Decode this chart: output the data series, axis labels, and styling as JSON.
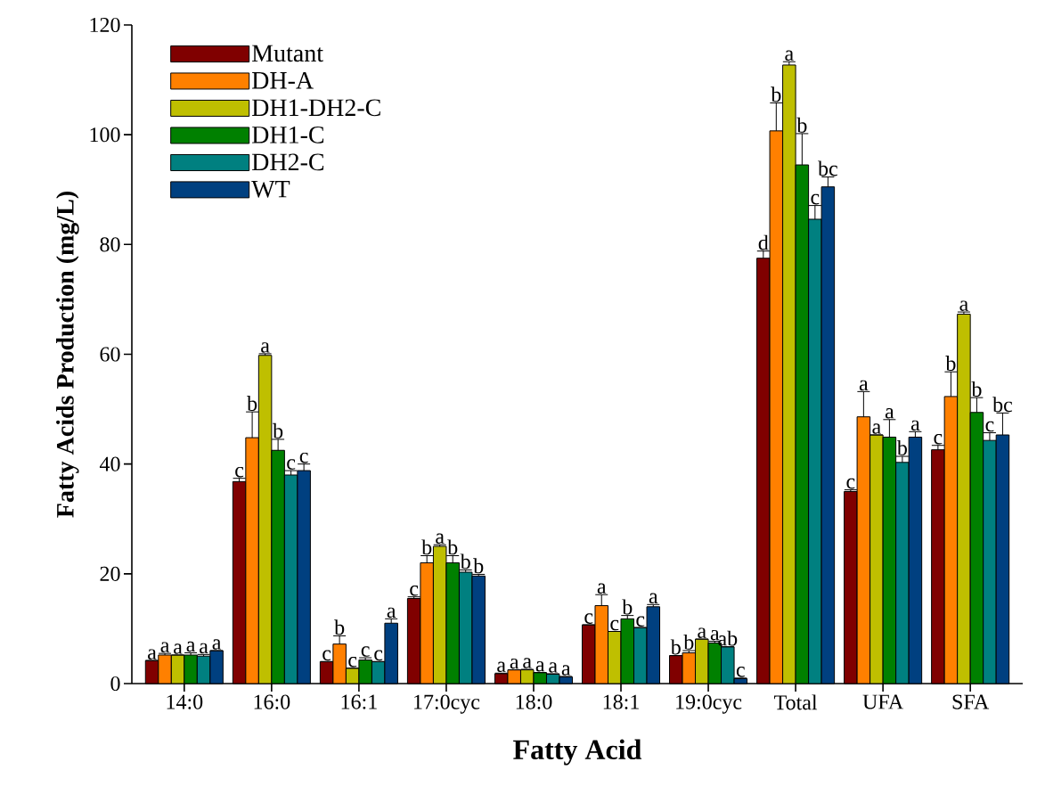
{
  "chart_data": {
    "type": "bar",
    "xlabel": "Fatty Acid",
    "ylabel": "Fatty Acids Production (mg/L)",
    "categories": [
      "14:0",
      "16:0",
      "16:1",
      "17:0cyc",
      "18:0",
      "18:1",
      "19:0cyc",
      "Total",
      "UFA",
      "SFA"
    ],
    "ylim": [
      0,
      120
    ],
    "yticks": [
      0,
      20,
      40,
      60,
      80,
      100,
      120
    ],
    "grid": false,
    "legend": "top left",
    "series": [
      {
        "name": "Mutant",
        "color": "#800000",
        "values": [
          4.2,
          36.8,
          4.0,
          15.5,
          1.8,
          10.7,
          5.1,
          77.5,
          35.0,
          42.6
        ],
        "errors": [
          null,
          0.6,
          null,
          0.3,
          0.1,
          null,
          null,
          1.3,
          0.3,
          0.8
        ],
        "value_labels": [
          "a",
          "c",
          "c",
          "c",
          "a",
          "c",
          "b",
          "d",
          "c",
          "c"
        ]
      },
      {
        "name": "DH-A",
        "color": "#ff8000",
        "values": [
          5.2,
          44.8,
          7.2,
          22.0,
          2.5,
          14.2,
          5.6,
          100.7,
          48.6,
          52.3
        ],
        "errors": [
          0.3,
          4.7,
          1.5,
          1.3,
          null,
          2.0,
          0.4,
          5.1,
          4.6,
          4.5
        ],
        "value_labels": [
          "a",
          "b",
          "b",
          "b",
          "a",
          "a",
          "b",
          "b",
          "a",
          "b"
        ]
      },
      {
        "name": "DH1-DH2-C",
        "color": "#bfbf00",
        "values": [
          5.2,
          59.8,
          2.8,
          25.0,
          2.5,
          9.5,
          8.1,
          112.7,
          45.3,
          67.3
        ],
        "errors": [
          null,
          0.3,
          null,
          0.3,
          0.1,
          null,
          null,
          0.6,
          null,
          0.4
        ],
        "value_labels": [
          "a",
          "a",
          "c",
          "a",
          "a",
          "c",
          "a",
          "a",
          "a",
          "a"
        ]
      },
      {
        "name": "DH1-C",
        "color": "#008000",
        "values": [
          5.2,
          42.5,
          4.3,
          22.0,
          2.0,
          11.8,
          7.4,
          94.5,
          44.9,
          49.4
        ],
        "errors": [
          0.4,
          2.0,
          0.4,
          1.3,
          null,
          0.6,
          0.3,
          5.7,
          3.2,
          2.7
        ],
        "value_labels": [
          "a",
          "b",
          "c",
          "b",
          "a",
          "b",
          "a",
          "b",
          "a",
          "b"
        ]
      },
      {
        "name": "DH2-C",
        "color": "#008080",
        "values": [
          5.0,
          38.0,
          4.0,
          20.3,
          1.7,
          10.2,
          6.7,
          84.6,
          40.3,
          44.3
        ],
        "errors": [
          0.3,
          0.8,
          null,
          0.4,
          0.1,
          null,
          null,
          2.5,
          1.1,
          1.4
        ],
        "value_labels": [
          "a",
          "c",
          "c",
          "b",
          "a",
          "c",
          "ab",
          "c",
          "b",
          "c"
        ]
      },
      {
        "name": "WT",
        "color": "#004080",
        "values": [
          6.0,
          38.8,
          11.0,
          19.6,
          1.2,
          14.0,
          0.9,
          90.5,
          44.9,
          45.3
        ],
        "errors": [
          null,
          1.2,
          0.8,
          0.3,
          0.1,
          0.4,
          0.1,
          1.8,
          1.0,
          4.0
        ],
        "value_labels": [
          "a",
          "c",
          "a",
          "b",
          "a",
          "a",
          "c",
          "bc",
          "a",
          "bc"
        ]
      }
    ]
  }
}
